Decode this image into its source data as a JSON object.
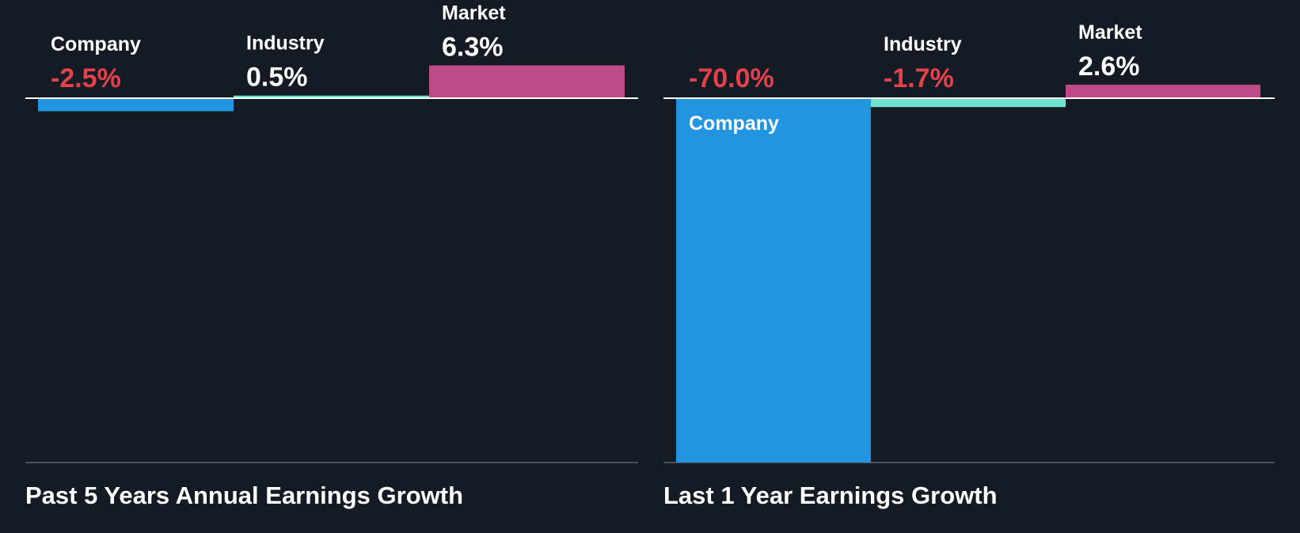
{
  "colors": {
    "background": "#151b24",
    "company": "#2394e0",
    "industry": "#6de4d0",
    "market": "#bd4b88",
    "negative_text": "#e5414a",
    "positive_text": "#ffffff",
    "label_text": "#ffffff",
    "baseline": "#ffffff",
    "bottom_axis": "#4a5058"
  },
  "chart_data": [
    {
      "type": "bar",
      "title": "Past 5 Years Annual Earnings Growth",
      "categories": [
        "Company",
        "Industry",
        "Market"
      ],
      "values": [
        -2.5,
        0.5,
        6.3
      ],
      "value_labels": [
        "-2.5%",
        "0.5%",
        "6.3%"
      ],
      "unit": "%",
      "ylim": [
        -70.0,
        6.3
      ],
      "grid": false
    },
    {
      "type": "bar",
      "title": "Last 1 Year Earnings Growth",
      "categories": [
        "Company",
        "Industry",
        "Market"
      ],
      "values": [
        -70.0,
        -1.7,
        2.6
      ],
      "value_labels": [
        "-70.0%",
        "-1.7%",
        "2.6%"
      ],
      "unit": "%",
      "ylim": [
        -70.0,
        6.3
      ],
      "grid": false
    }
  ]
}
